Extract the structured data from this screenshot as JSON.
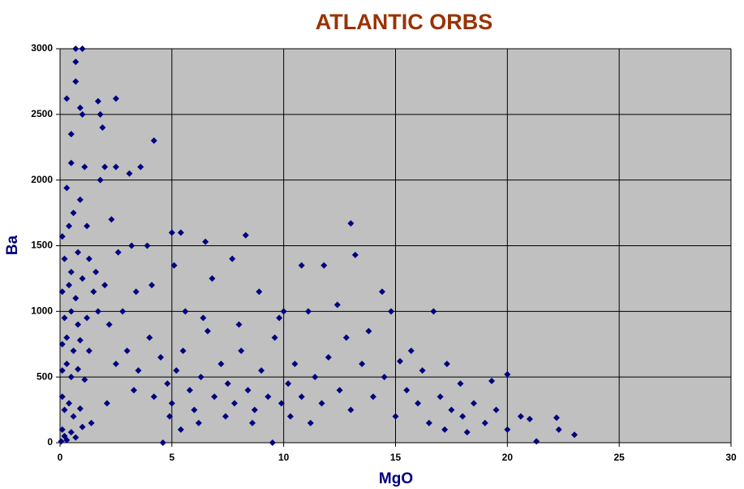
{
  "chart_data": {
    "type": "scatter",
    "title": "ATLANTIC ORBS",
    "x_label": "MgO",
    "y_label": "Ba",
    "color": "#000080",
    "background": "#c0c0c0",
    "grid": true,
    "xlim": [
      0,
      30
    ],
    "xticks": [
      0,
      5,
      10,
      15,
      20,
      25,
      30
    ],
    "ylim": [
      0,
      3000
    ],
    "yticks": [
      0,
      500,
      1000,
      1500,
      2000,
      2500,
      3000
    ],
    "x": [
      0.7,
      1.0,
      0.7,
      0.7,
      0.3,
      2.5,
      1.7,
      0.9,
      1.8,
      1.0,
      0.5,
      1.9,
      4.2,
      0.5,
      1.1,
      2.0,
      3.6,
      2.5,
      3.1,
      1.8,
      0.3,
      13.0,
      8.3,
      5.0,
      5.4,
      13.2,
      6.5,
      20.0,
      23.0,
      22.3,
      21.3,
      22.2,
      21.0,
      19.3,
      17.9,
      16.7,
      15.2,
      17.3,
      14.4,
      0.1,
      0.4,
      0.6,
      0.9,
      1.2,
      0.2,
      0.5,
      0.8,
      1.3,
      1.6,
      0.1,
      0.4,
      0.7,
      1.0,
      1.5,
      2.0,
      0.2,
      0.5,
      0.8,
      1.2,
      1.7,
      0.1,
      0.3,
      0.6,
      0.9,
      1.3,
      0.1,
      0.3,
      0.5,
      0.8,
      1.1,
      0.1,
      0.2,
      0.4,
      0.6,
      0.9,
      0.1,
      0.2,
      0.3,
      0.5,
      0.7,
      1.0,
      1.4,
      0.05,
      2.3,
      2.6,
      3.2,
      3.9,
      2.2,
      2.8,
      3.4,
      4.1,
      2.5,
      3.0,
      3.5,
      4.0,
      4.5,
      2.1,
      3.3,
      4.2,
      4.8,
      5.0,
      5.2,
      5.5,
      5.8,
      6.0,
      6.3,
      6.6,
      6.9,
      7.2,
      7.5,
      7.8,
      8.1,
      8.4,
      8.7,
      9.0,
      9.3,
      9.6,
      9.9,
      10.2,
      10.5,
      10.8,
      11.1,
      11.4,
      11.7,
      12.0,
      5.1,
      6.8,
      8.9,
      10.8,
      11.8,
      12.4,
      7.7,
      4.9,
      5.4,
      4.6,
      6.2,
      7.4,
      8.6,
      9.5,
      10.3,
      11.2,
      6.4,
      8.0,
      9.8,
      5.6,
      10.0,
      12.5,
      13.0,
      13.5,
      14.0,
      14.5,
      15.0,
      15.5,
      16.0,
      16.5,
      17.0,
      17.5,
      18.0,
      18.5,
      19.0,
      19.5,
      20.0,
      13.8,
      14.8,
      15.7,
      12.8,
      20.6,
      16.2,
      18.2,
      17.2
    ],
    "values": [
      3000,
      3000,
      2900,
      2750,
      2620,
      2620,
      2600,
      2550,
      2500,
      2500,
      2350,
      2400,
      2300,
      2130,
      2100,
      2100,
      2100,
      2100,
      2050,
      2000,
      1940,
      1670,
      1580,
      1600,
      1600,
      1430,
      1530,
      520,
      60,
      100,
      10,
      190,
      180,
      470,
      450,
      1000,
      620,
      600,
      1150,
      1570,
      1650,
      1750,
      1850,
      1650,
      1400,
      1300,
      1450,
      1400,
      1300,
      1150,
      1200,
      1100,
      1250,
      1150,
      1200,
      950,
      1000,
      900,
      950,
      1000,
      750,
      800,
      700,
      780,
      700,
      550,
      600,
      500,
      560,
      480,
      350,
      250,
      300,
      200,
      260,
      100,
      50,
      20,
      80,
      40,
      120,
      150,
      10,
      1700,
      1450,
      1500,
      1500,
      900,
      1000,
      1150,
      1200,
      600,
      700,
      550,
      800,
      650,
      300,
      400,
      350,
      450,
      300,
      550,
      700,
      400,
      250,
      500,
      850,
      350,
      600,
      450,
      300,
      700,
      400,
      250,
      550,
      350,
      800,
      300,
      450,
      600,
      350,
      1000,
      500,
      300,
      650,
      1350,
      1250,
      1150,
      1350,
      1350,
      1050,
      1400,
      200,
      100,
      0,
      150,
      200,
      150,
      0,
      200,
      150,
      950,
      900,
      950,
      1000,
      1000,
      400,
      250,
      600,
      350,
      500,
      200,
      400,
      300,
      150,
      350,
      250,
      200,
      300,
      150,
      250,
      100,
      850,
      1000,
      700,
      800,
      200,
      550,
      80,
      100
    ]
  }
}
